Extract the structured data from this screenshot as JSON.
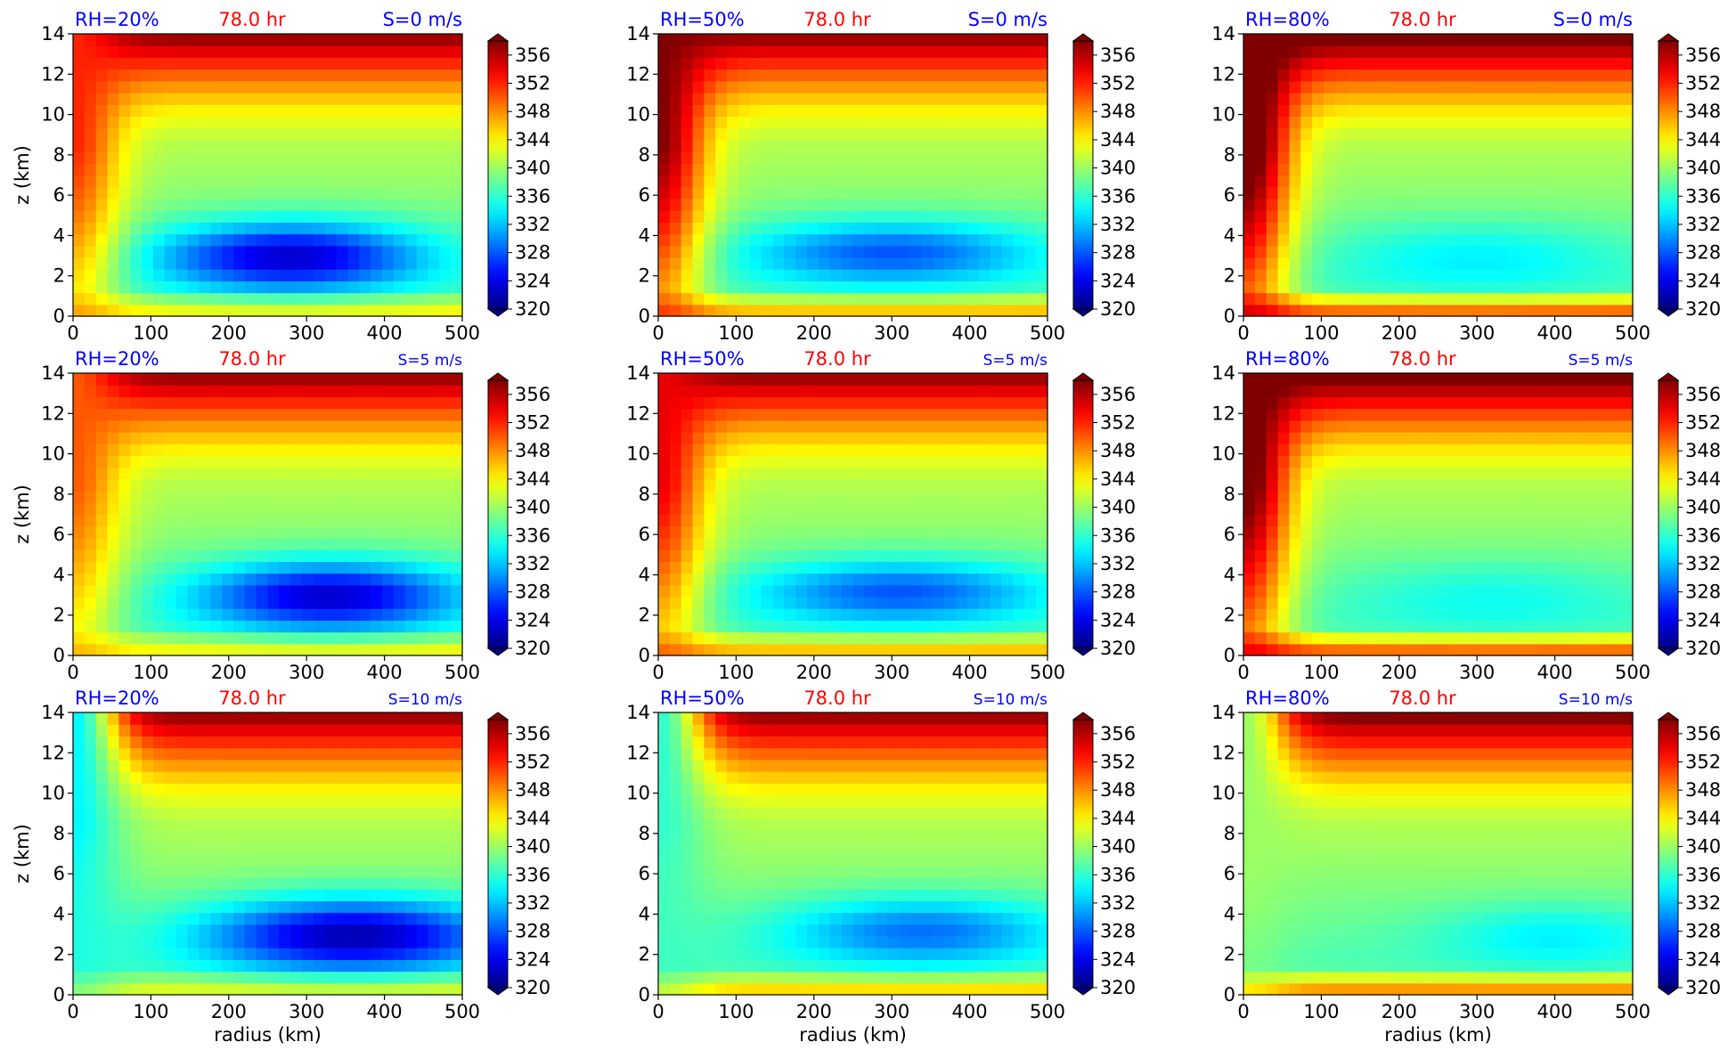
{
  "figure": {
    "colormap": "jet",
    "cmin": 320,
    "cmax": 358,
    "title_colors": {
      "rh": "#0000ff",
      "time": "#ff0000",
      "shear": "#0000ff"
    },
    "time_label": "78.0 hr"
  },
  "chart_data": [
    {
      "type": "contourf",
      "title_left": "RH=20%",
      "title_center": "78.0 hr",
      "title_right": "S=0 m/s",
      "xlabel": "",
      "ylabel": "z (km)",
      "xlim": [
        0,
        500
      ],
      "ylim": [
        0,
        14
      ],
      "xticks": [
        0,
        100,
        200,
        300,
        400,
        500
      ],
      "yticks": [
        0,
        2,
        4,
        6,
        8,
        10,
        12,
        14
      ],
      "colorbar_ticks": [
        320,
        324,
        328,
        332,
        336,
        340,
        344,
        348,
        352,
        356
      ],
      "field": {
        "core_min": 322,
        "core_r": 280,
        "core_z": 3.0,
        "core_wr": 170,
        "core_wz": 1.7,
        "inner_warm": 352,
        "sfc": 345,
        "top": 358
      }
    },
    {
      "type": "contourf",
      "title_left": "RH=50%",
      "title_center": "78.0 hr",
      "title_right": "S=0 m/s",
      "xlabel": "",
      "ylabel": "",
      "xlim": [
        0,
        500
      ],
      "ylim": [
        0,
        14
      ],
      "xticks": [
        0,
        100,
        200,
        300,
        400,
        500
      ],
      "yticks": [
        0,
        2,
        4,
        6,
        8,
        10,
        12,
        14
      ],
      "colorbar_ticks": [
        320,
        324,
        328,
        332,
        336,
        340,
        344,
        348,
        352,
        356
      ],
      "field": {
        "core_min": 327,
        "core_r": 300,
        "core_z": 3.2,
        "core_wr": 190,
        "core_wz": 1.6,
        "inner_warm": 358,
        "sfc": 348,
        "top": 358
      }
    },
    {
      "type": "contourf",
      "title_left": "RH=80%",
      "title_center": "78.0 hr",
      "title_right": "S=0 m/s",
      "xlabel": "",
      "ylabel": "",
      "xlim": [
        0,
        500
      ],
      "ylim": [
        0,
        14
      ],
      "xticks": [
        0,
        100,
        200,
        300,
        400,
        500
      ],
      "yticks": [
        0,
        2,
        4,
        6,
        8,
        10,
        12,
        14
      ],
      "colorbar_ticks": [
        320,
        324,
        328,
        332,
        336,
        340,
        344,
        348,
        352,
        356
      ],
      "field": {
        "core_min": 333,
        "core_r": 300,
        "core_z": 3.0,
        "core_wr": 190,
        "core_wz": 1.8,
        "inner_warm": 362,
        "sfc": 352,
        "top": 360
      }
    },
    {
      "type": "contourf",
      "title_left": "RH=20%",
      "title_center": "78.0 hr",
      "title_right": "S=5 m/s",
      "xlabel": "",
      "ylabel": "z (km)",
      "xlim": [
        0,
        500
      ],
      "ylim": [
        0,
        14
      ],
      "xticks": [
        0,
        100,
        200,
        300,
        400,
        500
      ],
      "yticks": [
        0,
        2,
        4,
        6,
        8,
        10,
        12,
        14
      ],
      "colorbar_ticks": [
        320,
        324,
        328,
        332,
        336,
        340,
        344,
        348,
        352,
        356
      ],
      "field": {
        "core_min": 322,
        "core_r": 330,
        "core_z": 3.0,
        "core_wr": 170,
        "core_wz": 1.7,
        "inner_warm": 350,
        "sfc": 345,
        "top": 358
      }
    },
    {
      "type": "contourf",
      "title_left": "RH=50%",
      "title_center": "78.0 hr",
      "title_right": "S=5 m/s",
      "xlabel": "",
      "ylabel": "",
      "xlim": [
        0,
        500
      ],
      "ylim": [
        0,
        14
      ],
      "xticks": [
        0,
        100,
        200,
        300,
        400,
        500
      ],
      "yticks": [
        0,
        2,
        4,
        6,
        8,
        10,
        12,
        14
      ],
      "colorbar_ticks": [
        320,
        324,
        328,
        332,
        336,
        340,
        344,
        348,
        352,
        356
      ],
      "field": {
        "core_min": 327,
        "core_r": 310,
        "core_z": 3.2,
        "core_wr": 190,
        "core_wz": 1.6,
        "inner_warm": 354,
        "sfc": 348,
        "top": 358
      }
    },
    {
      "type": "contourf",
      "title_left": "RH=80%",
      "title_center": "78.0 hr",
      "title_right": "S=5 m/s",
      "xlabel": "",
      "ylabel": "",
      "xlim": [
        0,
        500
      ],
      "ylim": [
        0,
        14
      ],
      "xticks": [
        0,
        100,
        200,
        300,
        400,
        500
      ],
      "yticks": [
        0,
        2,
        4,
        6,
        8,
        10,
        12,
        14
      ],
      "colorbar_ticks": [
        320,
        324,
        328,
        332,
        336,
        340,
        344,
        348,
        352,
        356
      ],
      "field": {
        "core_min": 334,
        "core_r": 320,
        "core_z": 3.0,
        "core_wr": 190,
        "core_wz": 1.8,
        "inner_warm": 360,
        "sfc": 352,
        "top": 360
      }
    },
    {
      "type": "contourf",
      "title_left": "RH=20%",
      "title_center": "78.0 hr",
      "title_right": "S=10 m/s",
      "xlabel": "radius (km)",
      "ylabel": "z (km)",
      "xlim": [
        0,
        500
      ],
      "ylim": [
        0,
        14
      ],
      "xticks": [
        0,
        100,
        200,
        300,
        400,
        500
      ],
      "yticks": [
        0,
        2,
        4,
        6,
        8,
        10,
        12,
        14
      ],
      "colorbar_ticks": [
        320,
        324,
        328,
        332,
        336,
        340,
        344,
        348,
        352,
        356
      ],
      "field": {
        "core_min": 321,
        "core_r": 360,
        "core_z": 3.0,
        "core_wr": 190,
        "core_wz": 1.8,
        "inner_warm": 334,
        "sfc": 344,
        "top": 358
      }
    },
    {
      "type": "contourf",
      "title_left": "RH=50%",
      "title_center": "78.0 hr",
      "title_right": "S=10 m/s",
      "xlabel": "radius (km)",
      "ylabel": "",
      "xlim": [
        0,
        500
      ],
      "ylim": [
        0,
        14
      ],
      "xticks": [
        0,
        100,
        200,
        300,
        400,
        500
      ],
      "yticks": [
        0,
        2,
        4,
        6,
        8,
        10,
        12,
        14
      ],
      "colorbar_ticks": [
        320,
        324,
        328,
        332,
        336,
        340,
        344,
        348,
        352,
        356
      ],
      "field": {
        "core_min": 328,
        "core_r": 340,
        "core_z": 3.2,
        "core_wr": 180,
        "core_wz": 1.7,
        "inner_warm": 336,
        "sfc": 347,
        "top": 358
      }
    },
    {
      "type": "contourf",
      "title_left": "RH=80%",
      "title_center": "78.0 hr",
      "title_right": "S=10 m/s",
      "xlabel": "radius (km)",
      "ylabel": "",
      "xlim": [
        0,
        500
      ],
      "ylim": [
        0,
        14
      ],
      "xticks": [
        0,
        100,
        200,
        300,
        400,
        500
      ],
      "yticks": [
        0,
        2,
        4,
        6,
        8,
        10,
        12,
        14
      ],
      "colorbar_ticks": [
        320,
        324,
        328,
        332,
        336,
        340,
        344,
        348,
        352,
        356
      ],
      "field": {
        "core_min": 333,
        "core_r": 400,
        "core_z": 3.0,
        "core_wr": 150,
        "core_wz": 1.6,
        "inner_warm": 340,
        "sfc": 350,
        "top": 359
      }
    }
  ]
}
